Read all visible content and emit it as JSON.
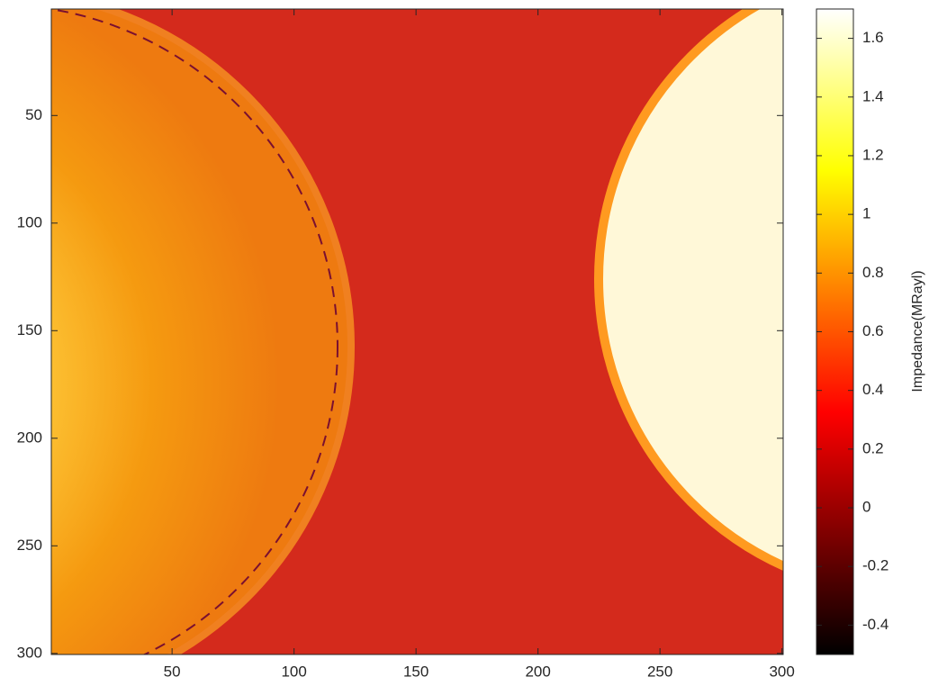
{
  "chart_data": {
    "type": "image",
    "xlim": [
      0.5,
      300.5
    ],
    "xticks": [
      50,
      100,
      150,
      200,
      250,
      300
    ],
    "ylim": [
      0.5,
      300.5
    ],
    "yticks": [
      50,
      100,
      150,
      200,
      250,
      300
    ],
    "y_reversed": true,
    "colorbar": {
      "label": "Impedance(MRayl)",
      "colormap": "hot",
      "clim": [
        -0.5,
        1.7
      ],
      "ticks": [
        -0.4,
        -0.2,
        0,
        0.2,
        0.4,
        0.6,
        0.8,
        1,
        1.2,
        1.4,
        1.6
      ]
    }
  }
}
